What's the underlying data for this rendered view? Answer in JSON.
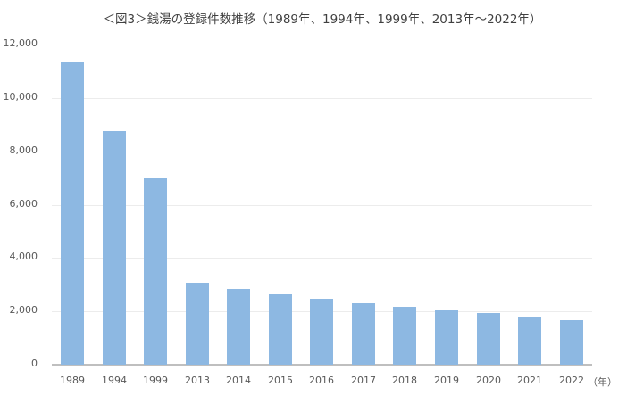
{
  "chart_data": {
    "type": "bar",
    "title": "＜図3＞銭湯の登録件数推移（1989年、1994年、1999年、2013年～2022年）",
    "xlabel": "（年）",
    "ylabel": "",
    "categories": [
      "1989",
      "1994",
      "1999",
      "2013",
      "2014",
      "2015",
      "2016",
      "2017",
      "2018",
      "2019",
      "2020",
      "2021",
      "2022"
    ],
    "values": [
      11370,
      8760,
      6990,
      3080,
      2840,
      2640,
      2480,
      2310,
      2170,
      2040,
      1940,
      1810,
      1670
    ],
    "ylim": [
      0,
      12000
    ],
    "yticks": [
      "0",
      "2,000",
      "4,000",
      "6,000",
      "8,000",
      "10,000",
      "12,000"
    ],
    "grid": true,
    "legend": null,
    "bar_color": "#8db8e2"
  }
}
